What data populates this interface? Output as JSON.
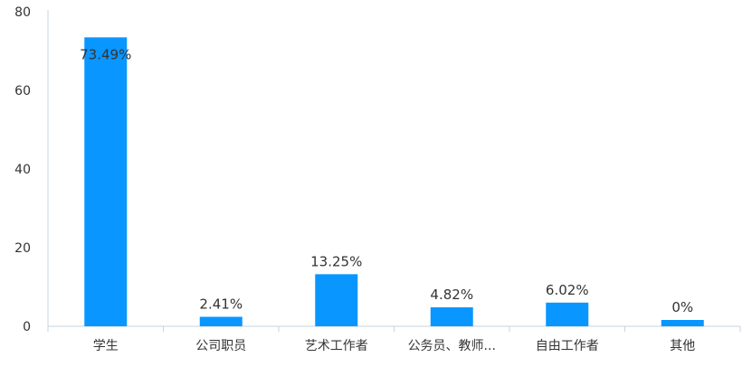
{
  "chart_data": {
    "type": "bar",
    "title": "",
    "xlabel": "",
    "ylabel": "",
    "ylim": [
      0,
      80
    ],
    "yticks": [
      0,
      20,
      40,
      60,
      80
    ],
    "grid": false,
    "categories": [
      "学生",
      "公司职员",
      "艺术工作者",
      "公务员、教师...",
      "自由工作者",
      "其他"
    ],
    "values": [
      73.49,
      2.41,
      13.25,
      4.82,
      6.02,
      0
    ],
    "data_labels": [
      "73.49%",
      "2.41%",
      "13.25%",
      "4.82%",
      "6.02%",
      "0%"
    ],
    "bar_color": "#0a96ff",
    "axis_color": "#c5d3e0"
  }
}
